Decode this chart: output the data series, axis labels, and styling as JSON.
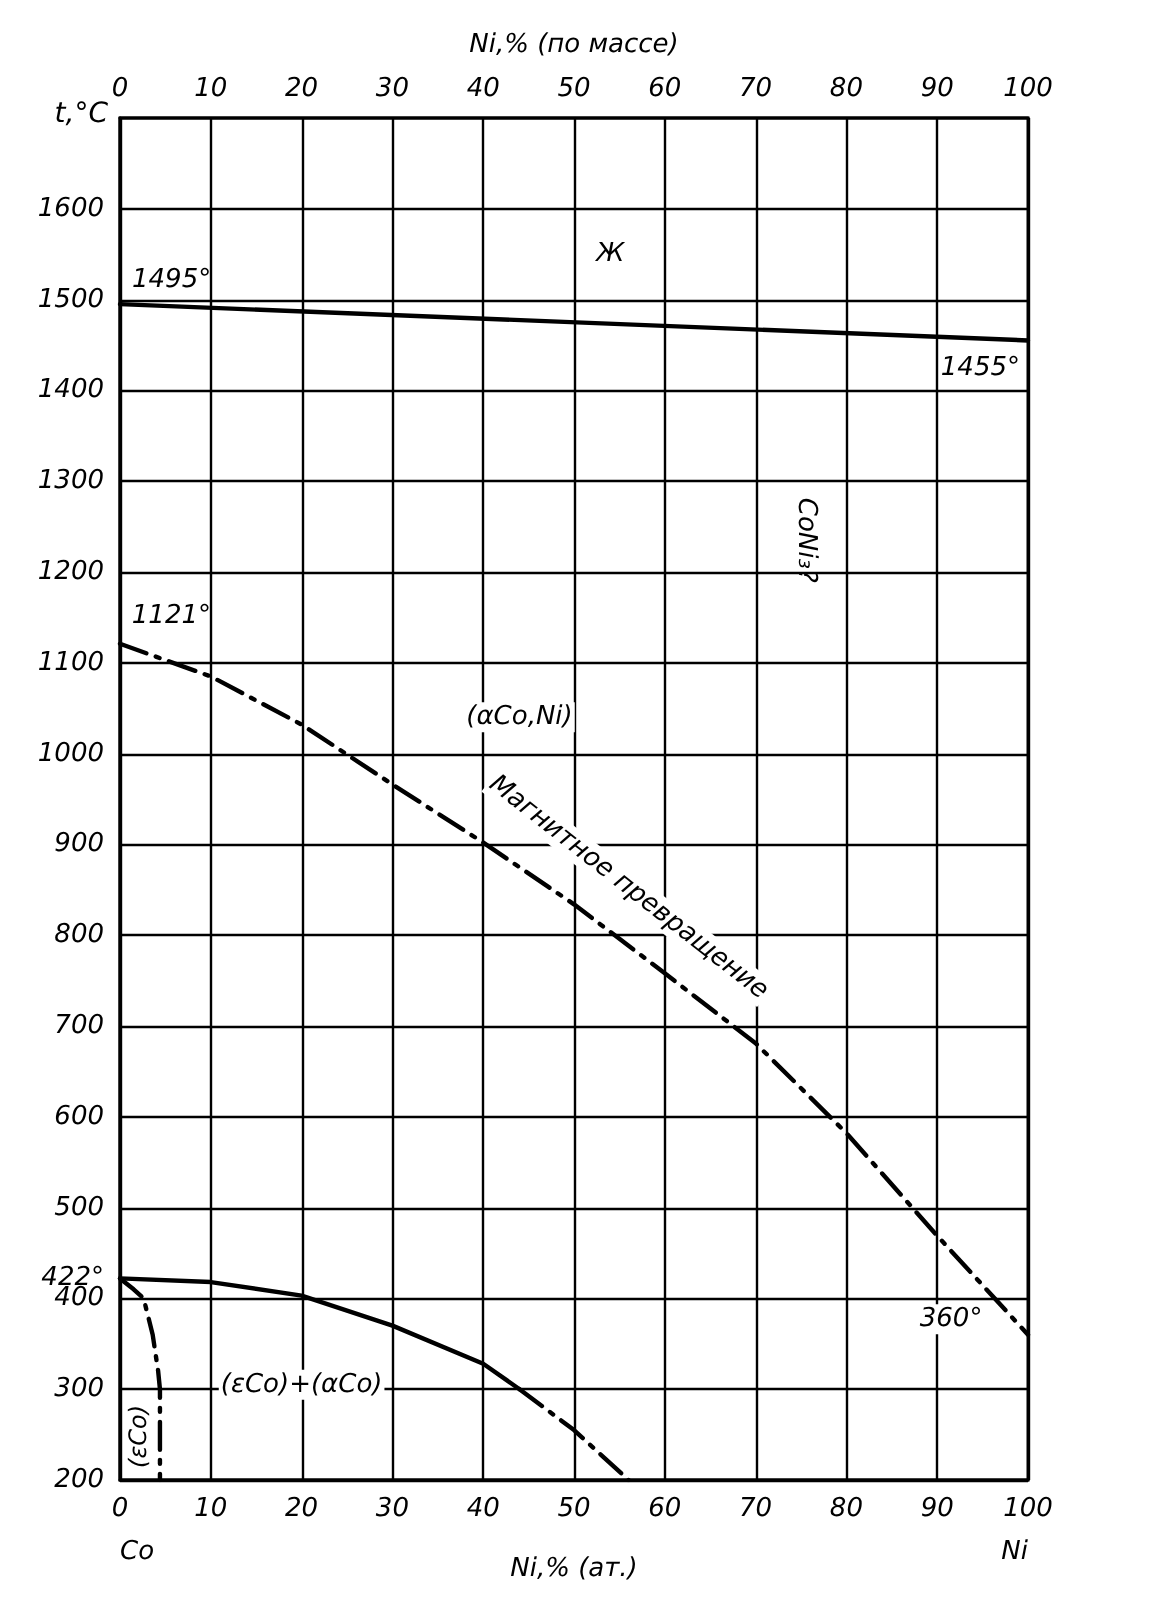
{
  "chart_data": {
    "type": "line",
    "xlabel": "Ni,% (ат.)",
    "x2label": "Ni,% (по массе)",
    "ylabel": "t,°C",
    "xlim": [
      0,
      100
    ],
    "xticks": [
      0,
      10,
      20,
      30,
      40,
      50,
      60,
      70,
      80,
      90,
      100
    ],
    "x2lim": [
      0,
      100
    ],
    "x2ticks": [
      0,
      10,
      20,
      30,
      40,
      50,
      60,
      70,
      80,
      90,
      100
    ],
    "ylim": [
      200,
      1700
    ],
    "yticks": [
      200,
      300,
      400,
      {
        "value": 422,
        "label": "422°"
      },
      500,
      600,
      700,
      800,
      900,
      1000,
      1100,
      1200,
      1300,
      1400,
      1500,
      1600
    ],
    "grid": true,
    "marker": "none",
    "series": [
      {
        "color": "#000000",
        "line_style": "solid",
        "x": [
          0,
          100
        ],
        "values": [
          1495,
          1455
        ]
      },
      {
        "color": "#000000",
        "line_style": "dashed",
        "x": [
          0,
          10,
          20,
          30,
          40,
          50,
          60,
          70,
          80,
          90,
          100
        ],
        "values": [
          1121,
          1085,
          1032,
          966,
          902,
          834,
          758,
          681,
          582,
          469,
          360
        ]
      },
      {
        "color": "#000000",
        "line_style": "solid",
        "x": [
          0,
          10,
          20,
          30,
          40,
          44
        ],
        "values": [
          422,
          418,
          403,
          370,
          328,
          300
        ]
      },
      {
        "color": "#000000",
        "line_style": "dashed",
        "x": [
          44,
          50,
          56
        ],
        "values": [
          300,
          255,
          200
        ]
      },
      {
        "color": "#000000",
        "line_style": "dashed",
        "x": [
          0,
          1.5,
          2.6,
          3.6,
          4.2,
          4.4,
          4.4
        ],
        "values": [
          422,
          410,
          400,
          360,
          320,
          300,
          200
        ]
      }
    ],
    "annotations": [
      "Ж",
      {
        "text": "1495°",
        "y": 1495
      },
      {
        "text": "1455°",
        "y": 1455
      },
      "1121°",
      "(αCo,Ni)",
      "CoNi₃?",
      "Магнитное превращение",
      "360°",
      "(εCo)+(αCo)",
      "(εCo)",
      "Co",
      "Ni"
    ]
  }
}
